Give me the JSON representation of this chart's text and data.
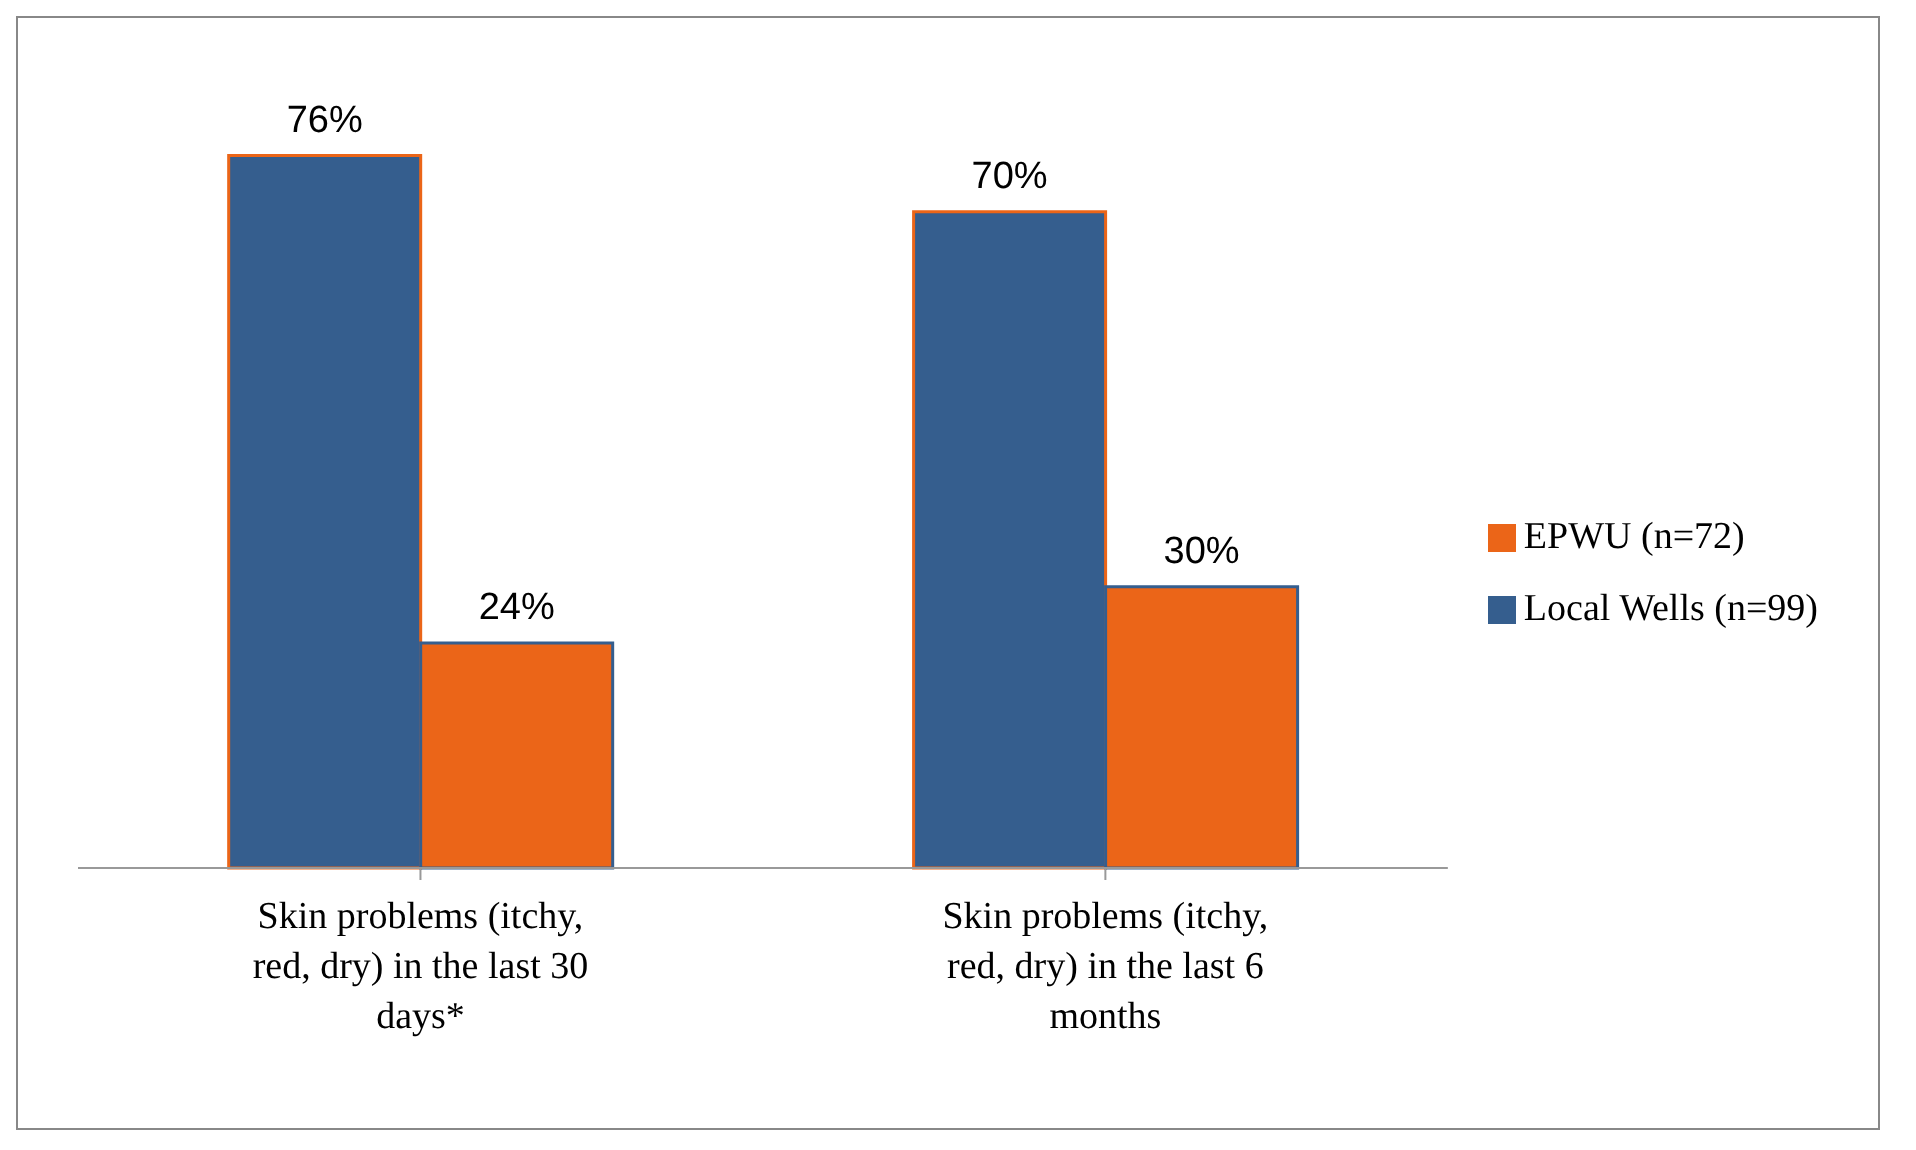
{
  "chart_data": {
    "type": "bar",
    "categories": [
      "Skin problems (itchy, red, dry) in the last 30 days*",
      "Skin problems (itchy, red, dry) in the last 6 months"
    ],
    "series": [
      {
        "name": "Local Wells (n=99)",
        "color": "#355e8e",
        "values": [
          76,
          70
        ],
        "value_labels": [
          "76%",
          "70%"
        ]
      },
      {
        "name": "EPWU (n=72)",
        "color": "#eb6518",
        "values": [
          24,
          30
        ],
        "value_labels": [
          "24%",
          "30%"
        ]
      }
    ],
    "legend": "right",
    "grid": false
  }
}
